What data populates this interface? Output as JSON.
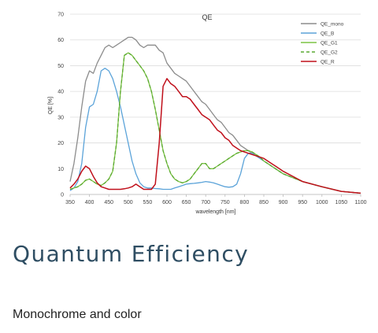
{
  "colors": {
    "QE_mono": "#8c8c8c",
    "QE_B": "#5ba3d9",
    "QE_G1": "#7cc443",
    "QE_G2": "#5aa830",
    "QE_R": "#c0101b",
    "grid": "#dddddd",
    "heading": "#2f4e63"
  },
  "chart_data": {
    "type": "line",
    "title": "QE",
    "xlabel": "wavelength [nm]",
    "ylabel": "QE [%]",
    "xlim": [
      350,
      1100
    ],
    "ylim": [
      0,
      70
    ],
    "xticks": [
      "350",
      "400",
      "450",
      "500",
      "550",
      "600",
      "650",
      "700",
      "750",
      "800",
      "850",
      "900",
      "950",
      "1000",
      "1050",
      "1100"
    ],
    "yticks": [
      "0",
      "10",
      "20",
      "30",
      "40",
      "50",
      "60",
      "70"
    ],
    "grid": "horizontal",
    "legend_position": "top-right",
    "series": [
      {
        "name": "QE_mono",
        "color": "#8c8c8c",
        "dash": false,
        "x": [
          350,
          360,
          370,
          380,
          390,
          400,
          410,
          420,
          430,
          440,
          450,
          460,
          470,
          480,
          490,
          500,
          510,
          520,
          530,
          540,
          550,
          560,
          570,
          580,
          590,
          600,
          610,
          620,
          630,
          640,
          650,
          660,
          670,
          680,
          690,
          700,
          710,
          720,
          730,
          740,
          750,
          760,
          770,
          780,
          790,
          800,
          810,
          820,
          830,
          840,
          850,
          860,
          870,
          880,
          890,
          900,
          950,
          1000,
          1050,
          1100
        ],
        "y": [
          5,
          12,
          22,
          34,
          44,
          48,
          47,
          51,
          54,
          57,
          58,
          57,
          58,
          59,
          60,
          61,
          61,
          60,
          58,
          57,
          58,
          58,
          58,
          56,
          55,
          51,
          49,
          47,
          46,
          45,
          44,
          42,
          40,
          38,
          36,
          35,
          33,
          31,
          29,
          28,
          26,
          24,
          23,
          21,
          19,
          18,
          17,
          16,
          15,
          14,
          13,
          12,
          11,
          10,
          9,
          8,
          5,
          3,
          1.2,
          0.5
        ]
      },
      {
        "name": "QE_B",
        "color": "#5ba3d9",
        "dash": false,
        "x": [
          350,
          360,
          370,
          380,
          390,
          400,
          410,
          420,
          430,
          440,
          450,
          460,
          470,
          480,
          490,
          500,
          510,
          520,
          530,
          540,
          550,
          560,
          570,
          580,
          590,
          600,
          610,
          620,
          630,
          640,
          650,
          660,
          670,
          680,
          690,
          700,
          710,
          720,
          730,
          740,
          750,
          760,
          770,
          780,
          790,
          800,
          810,
          820,
          830,
          840,
          850,
          860,
          870,
          880,
          890,
          900,
          950,
          1000,
          1050,
          1100
        ],
        "y": [
          1.5,
          2.5,
          5,
          12,
          26,
          34,
          35,
          40,
          48,
          49,
          48,
          45,
          40,
          34,
          27,
          20,
          13,
          8,
          4.5,
          3,
          2.5,
          2.5,
          2.3,
          2.2,
          2,
          2,
          2,
          2.5,
          3,
          3.5,
          4,
          4.2,
          4.3,
          4.5,
          4.7,
          5,
          4.8,
          4.5,
          4,
          3.5,
          3,
          2.8,
          3,
          4,
          8,
          14,
          16,
          16,
          15,
          14,
          13,
          12,
          11,
          10,
          9,
          8,
          5,
          3,
          1.2,
          0.5
        ]
      },
      {
        "name": "QE_G1",
        "color": "#7cc443",
        "dash": false,
        "x": [
          350,
          360,
          370,
          380,
          390,
          400,
          410,
          420,
          430,
          440,
          450,
          460,
          470,
          480,
          490,
          500,
          510,
          520,
          530,
          540,
          550,
          560,
          570,
          580,
          590,
          600,
          610,
          620,
          630,
          640,
          650,
          660,
          670,
          680,
          690,
          700,
          710,
          720,
          730,
          740,
          750,
          760,
          770,
          780,
          790,
          800,
          810,
          820,
          830,
          840,
          850,
          860,
          870,
          880,
          890,
          900,
          950,
          1000,
          1050,
          1100
        ],
        "y": [
          2,
          2.5,
          3,
          4,
          5.5,
          6,
          5,
          4,
          3.5,
          4.5,
          6,
          9,
          20,
          40,
          54,
          55,
          54,
          52,
          50,
          48,
          45,
          40,
          33,
          25,
          17,
          12,
          8,
          6,
          5,
          4.5,
          5,
          6,
          8,
          10,
          12,
          12,
          10,
          10,
          11,
          12,
          13,
          14,
          15,
          16,
          16.5,
          17,
          17,
          16.5,
          15.5,
          14.5,
          13,
          12,
          11,
          10,
          9,
          8,
          5,
          3,
          1.2,
          0.5
        ]
      },
      {
        "name": "QE_G2",
        "color": "#5aa830",
        "dash": true,
        "x": [
          350,
          360,
          370,
          380,
          390,
          400,
          410,
          420,
          430,
          440,
          450,
          460,
          470,
          480,
          490,
          500,
          510,
          520,
          530,
          540,
          550,
          560,
          570,
          580,
          590,
          600,
          610,
          620,
          630,
          640,
          650,
          660,
          670,
          680,
          690,
          700,
          710,
          720,
          730,
          740,
          750,
          760,
          770,
          780,
          790,
          800,
          810,
          820,
          830,
          840,
          850,
          860,
          870,
          880,
          890,
          900,
          950,
          1000,
          1050,
          1100
        ],
        "y": [
          2,
          2.5,
          3,
          4,
          5.5,
          6,
          5,
          4,
          3.5,
          4.5,
          6,
          9,
          20,
          40,
          54,
          55,
          54,
          52,
          50,
          48,
          45,
          40,
          33,
          25,
          17,
          12,
          8,
          6,
          5,
          4.5,
          5,
          6,
          8,
          10,
          12,
          12,
          10,
          10,
          11,
          12,
          13,
          14,
          15,
          16,
          16.5,
          17,
          17,
          16.5,
          15.5,
          14.5,
          13,
          12,
          11,
          10,
          9,
          8,
          5,
          3,
          1.2,
          0.5
        ]
      },
      {
        "name": "QE_R",
        "color": "#c0101b",
        "dash": false,
        "x": [
          350,
          360,
          370,
          380,
          390,
          400,
          410,
          420,
          430,
          440,
          450,
          460,
          470,
          480,
          490,
          500,
          510,
          520,
          530,
          540,
          550,
          560,
          570,
          580,
          590,
          600,
          610,
          620,
          630,
          640,
          650,
          660,
          670,
          680,
          690,
          700,
          710,
          720,
          730,
          740,
          750,
          760,
          770,
          780,
          790,
          800,
          810,
          820,
          830,
          840,
          850,
          860,
          870,
          880,
          890,
          900,
          950,
          1000,
          1050,
          1100
        ],
        "y": [
          2.5,
          4,
          6,
          9,
          11,
          10,
          7,
          4.5,
          3,
          2.5,
          2,
          2,
          2,
          2,
          2.2,
          2.5,
          3,
          4,
          3,
          2,
          2,
          2,
          4,
          20,
          42,
          45,
          43,
          42,
          40,
          38,
          38,
          37,
          35,
          33,
          31,
          30,
          29,
          27,
          25,
          24,
          22,
          21,
          19,
          18,
          17,
          16.5,
          16,
          15.5,
          15,
          14.5,
          14,
          13,
          12,
          11,
          10,
          9,
          5,
          3,
          1.2,
          0.5
        ]
      }
    ]
  },
  "page": {
    "heading": "Quantum Efficiency",
    "subtitle": "Monochrome and color"
  }
}
